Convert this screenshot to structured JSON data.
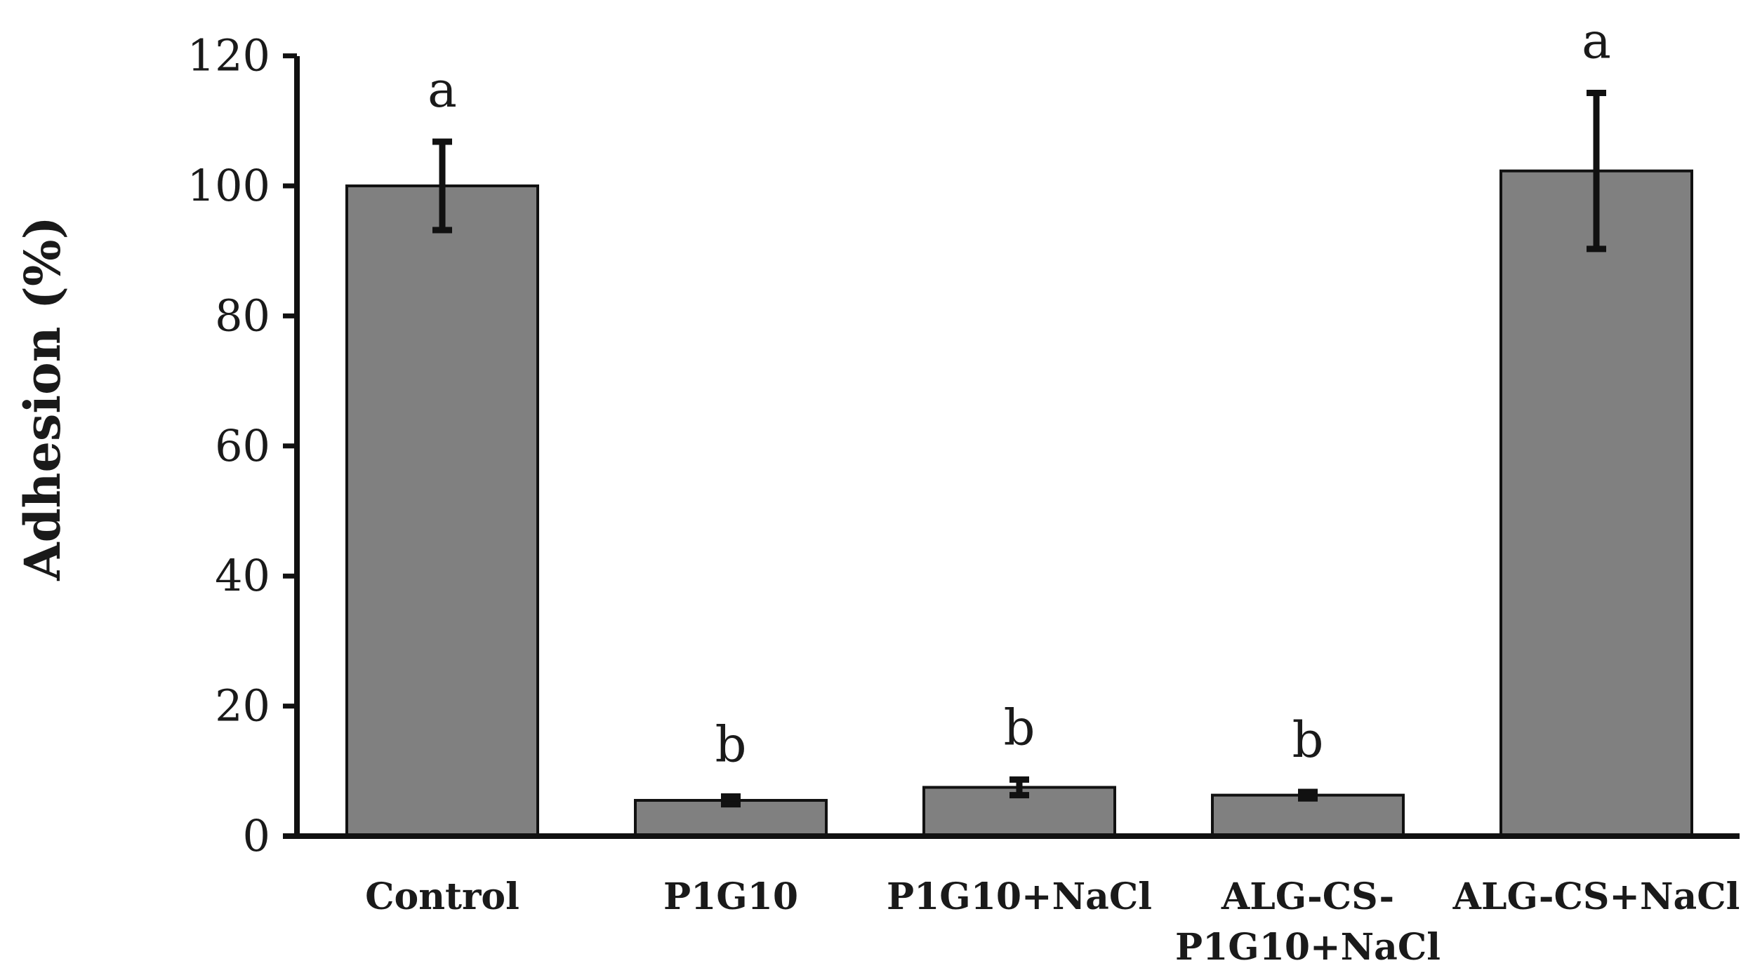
{
  "chart_data": {
    "type": "bar",
    "title": "",
    "xlabel": "",
    "ylabel": "Adhesion (%)",
    "ylim": [
      0,
      120
    ],
    "yticks": [
      0,
      20,
      40,
      60,
      80,
      100,
      120
    ],
    "grid": false,
    "categories": [
      [
        "Control"
      ],
      [
        "P1G10"
      ],
      [
        "P1G10+NaCl"
      ],
      [
        "ALG-CS-",
        "P1G10+NaCl"
      ],
      [
        "ALG-CS+NaCl"
      ]
    ],
    "values": [
      100,
      5.5,
      7.5,
      6.3,
      102.3
    ],
    "errors": [
      6.8,
      0.6,
      1.2,
      0.5,
      12
    ],
    "significance_letters": [
      "a",
      "b",
      "b",
      "b",
      "a"
    ],
    "colors": {
      "bar_fill": "#808080",
      "bar_stroke": "#111111",
      "axis": "#111111",
      "error_bar": "#111111"
    }
  }
}
